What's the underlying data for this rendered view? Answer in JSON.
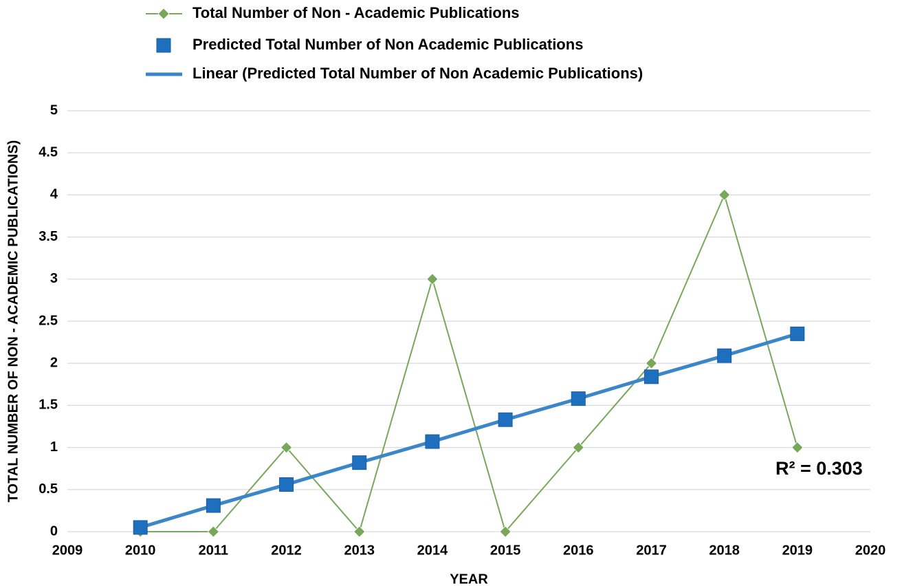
{
  "chart_data": {
    "type": "line",
    "x": [
      2010,
      2011,
      2012,
      2013,
      2014,
      2015,
      2016,
      2017,
      2018,
      2019
    ],
    "series": [
      {
        "name": "Total Number of Non - Academic Publications",
        "color": "#77a85a",
        "marker": "diamond",
        "line": true,
        "values": [
          0,
          0,
          1,
          0,
          3,
          0,
          1,
          2,
          4,
          1
        ]
      },
      {
        "name": "Predicted Total Number of Non Academic Publications",
        "color": "#1f6fbf",
        "marker": "square",
        "line": false,
        "values": [
          0.05,
          0.31,
          0.56,
          0.82,
          1.07,
          1.33,
          1.58,
          1.84,
          2.09,
          2.35
        ]
      },
      {
        "name": "Linear (Predicted Total Number of Non Academic Publications)",
        "color": "#3a86c8",
        "marker": "none",
        "line": true,
        "values": [
          0.05,
          0.31,
          0.56,
          0.82,
          1.07,
          1.33,
          1.58,
          1.84,
          2.09,
          2.35
        ]
      }
    ],
    "xlabel": "YEAR",
    "ylabel": "TOTAL NUMBER OF NON - ACADEMIC PUBLICATIONS)",
    "annotation": "R² = 0.303",
    "xlim": [
      2009,
      2020
    ],
    "xticks": [
      2009,
      2010,
      2011,
      2012,
      2013,
      2014,
      2015,
      2016,
      2017,
      2018,
      2019,
      2020
    ],
    "ylim": [
      0,
      5
    ],
    "yticks": [
      0,
      0.5,
      1,
      1.5,
      2,
      2.5,
      3,
      3.5,
      4,
      4.5,
      5
    ],
    "grid": true,
    "legend": "top"
  }
}
